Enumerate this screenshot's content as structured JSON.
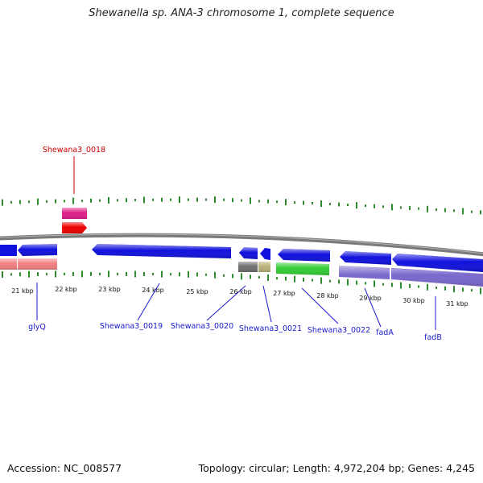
{
  "title": "Shewanella sp. ANA-3 chromosome 1, complete sequence",
  "footer": {
    "accession": "Accession: NC_008577",
    "topology": "Topology: circular; Length: 4,972,204 bp; Genes: 4,245"
  },
  "colors": {
    "backbone": "#7a7a7a",
    "gc_skew": "#2e8b2e",
    "label_blue": "#1a1acc",
    "label_red": "#cc0000"
  },
  "kbp_ticks": [
    "21 kbp",
    "22 kbp",
    "23 kbp",
    "24 kbp",
    "25 kbp",
    "26 kbp",
    "27 kbp",
    "28 kbp",
    "29 kbp",
    "30 kbp",
    "31 kbp"
  ],
  "gene_labels": [
    {
      "text": "Shewana3_0018",
      "color": "red"
    },
    {
      "text": "glyQ",
      "color": "blue"
    },
    {
      "text": "Shewana3_0019",
      "color": "blue"
    },
    {
      "text": "Shewana3_0020",
      "color": "blue"
    },
    {
      "text": "Shewana3_0021",
      "color": "blue"
    },
    {
      "text": "Shewana3_0022",
      "color": "blue"
    },
    {
      "text": "fadA",
      "color": "blue"
    },
    {
      "text": "fadB",
      "color": "blue"
    }
  ],
  "features": [
    {
      "name": "feature-forward-0018",
      "color": "#ee0000",
      "strand": "forward"
    },
    {
      "name": "feature-rna-0018",
      "color": "#e0208a",
      "strand": "forward"
    },
    {
      "name": "cds-reverse-glyq",
      "color": "#1111dd",
      "strand": "reverse"
    },
    {
      "name": "cds-reverse-0019",
      "color": "#1111dd",
      "strand": "reverse"
    },
    {
      "name": "cds-reverse-0020",
      "color": "#1111dd",
      "strand": "reverse"
    },
    {
      "name": "cds-reverse-0021",
      "color": "#1111dd",
      "strand": "reverse"
    },
    {
      "name": "cds-reverse-0022",
      "color": "#1111dd",
      "strand": "reverse"
    },
    {
      "name": "cds-reverse-fada",
      "color": "#1111dd",
      "strand": "reverse"
    },
    {
      "name": "cds-reverse-fadb",
      "color": "#1111dd",
      "strand": "reverse"
    },
    {
      "name": "cog-glyq",
      "color": "#f08080"
    },
    {
      "name": "cog-0020",
      "color": "#707070"
    },
    {
      "name": "cog-0021",
      "color": "#b8b078"
    },
    {
      "name": "cog-0022",
      "color": "#33cc33"
    },
    {
      "name": "cog-fad",
      "color": "#7a68cc"
    }
  ]
}
